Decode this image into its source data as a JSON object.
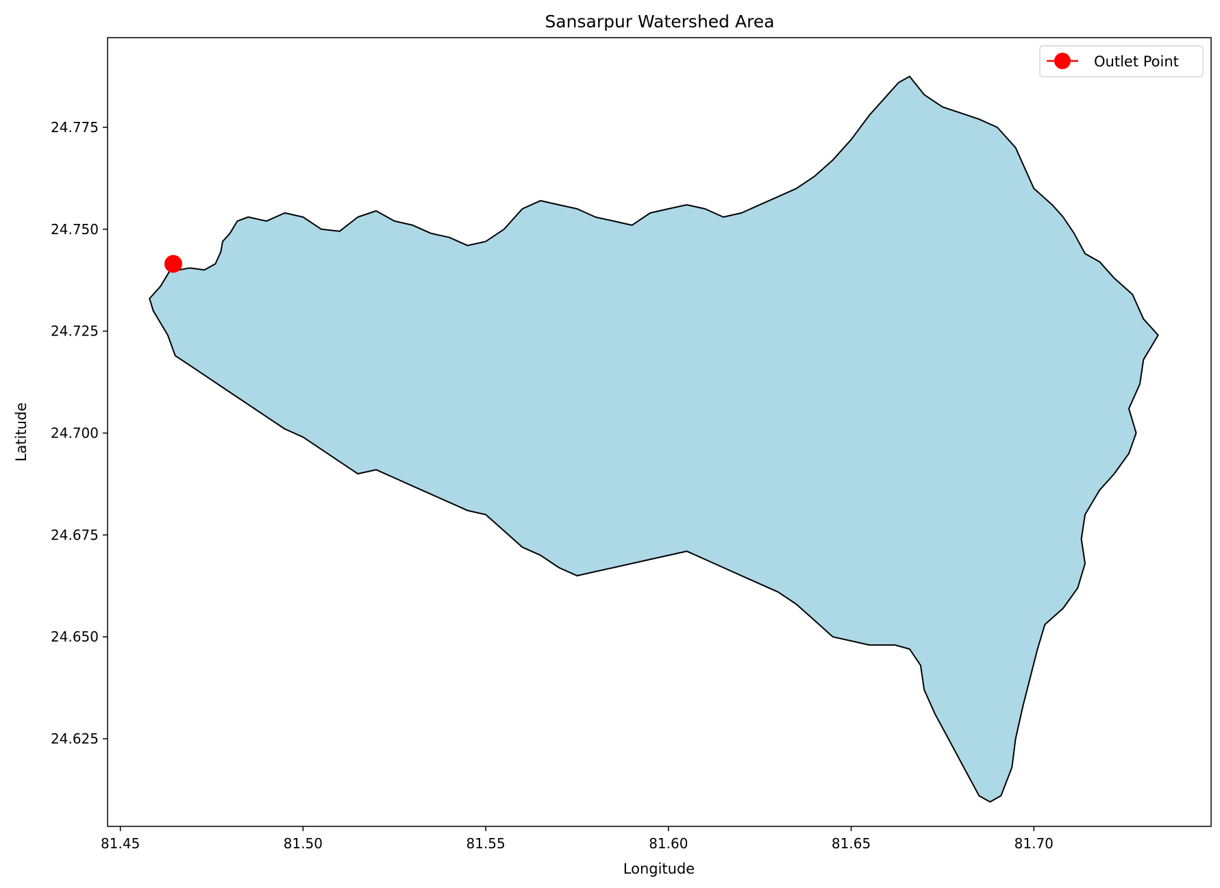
{
  "chart_data": {
    "type": "map",
    "title": "Sansarpur Watershed Area",
    "xlabel": "Longitude",
    "ylabel": "Latitude",
    "xlim": [
      81.4465,
      81.7485
    ],
    "ylim": [
      24.6035,
      24.797
    ],
    "xticks": [
      81.45,
      81.5,
      81.55,
      81.6,
      81.65,
      81.7
    ],
    "xtick_labels": [
      "81.45",
      "81.50",
      "81.55",
      "81.60",
      "81.65",
      "81.70"
    ],
    "yticks": [
      24.625,
      24.65,
      24.675,
      24.7,
      24.725,
      24.75,
      24.775
    ],
    "ytick_labels": [
      "24.625",
      "24.650",
      "24.675",
      "24.700",
      "24.725",
      "24.750",
      "24.775"
    ],
    "grid": false,
    "legend_position": "top-right",
    "legend": [
      {
        "label": "Outlet Point",
        "color": "#ff0000",
        "marker": "circle"
      }
    ],
    "outlet_point": {
      "lon": 81.4645,
      "lat": 24.7415
    },
    "watershed_fill": "#add8e6",
    "watershed_edge": "#000000",
    "boundary": [
      [
        81.4645,
        24.7412
      ],
      [
        81.466,
        24.74
      ],
      [
        81.469,
        24.7405
      ],
      [
        81.473,
        24.74
      ],
      [
        81.476,
        24.7415
      ],
      [
        81.4775,
        24.7445
      ],
      [
        81.478,
        24.747
      ],
      [
        81.48,
        24.749
      ],
      [
        81.482,
        24.752
      ],
      [
        81.485,
        24.753
      ],
      [
        81.49,
        24.752
      ],
      [
        81.495,
        24.754
      ],
      [
        81.5,
        24.753
      ],
      [
        81.505,
        24.75
      ],
      [
        81.51,
        24.7495
      ],
      [
        81.515,
        24.753
      ],
      [
        81.52,
        24.7545
      ],
      [
        81.525,
        24.752
      ],
      [
        81.53,
        24.751
      ],
      [
        81.535,
        24.749
      ],
      [
        81.54,
        24.748
      ],
      [
        81.545,
        24.746
      ],
      [
        81.55,
        24.747
      ],
      [
        81.555,
        24.75
      ],
      [
        81.56,
        24.755
      ],
      [
        81.565,
        24.757
      ],
      [
        81.57,
        24.756
      ],
      [
        81.575,
        24.755
      ],
      [
        81.58,
        24.753
      ],
      [
        81.585,
        24.752
      ],
      [
        81.59,
        24.751
      ],
      [
        81.595,
        24.754
      ],
      [
        81.6,
        24.755
      ],
      [
        81.605,
        24.756
      ],
      [
        81.61,
        24.755
      ],
      [
        81.615,
        24.753
      ],
      [
        81.62,
        24.754
      ],
      [
        81.625,
        24.756
      ],
      [
        81.63,
        24.758
      ],
      [
        81.635,
        24.76
      ],
      [
        81.64,
        24.763
      ],
      [
        81.645,
        24.767
      ],
      [
        81.65,
        24.772
      ],
      [
        81.655,
        24.778
      ],
      [
        81.66,
        24.783
      ],
      [
        81.663,
        24.786
      ],
      [
        81.666,
        24.7875
      ],
      [
        81.67,
        24.783
      ],
      [
        81.675,
        24.78
      ],
      [
        81.68,
        24.7785
      ],
      [
        81.685,
        24.777
      ],
      [
        81.69,
        24.775
      ],
      [
        81.695,
        24.77
      ],
      [
        81.7,
        24.76
      ],
      [
        81.705,
        24.756
      ],
      [
        81.708,
        24.753
      ],
      [
        81.711,
        24.749
      ],
      [
        81.714,
        24.744
      ],
      [
        81.718,
        24.742
      ],
      [
        81.722,
        24.738
      ],
      [
        81.727,
        24.734
      ],
      [
        81.73,
        24.728
      ],
      [
        81.734,
        24.724
      ],
      [
        81.73,
        24.718
      ],
      [
        81.729,
        24.712
      ],
      [
        81.726,
        24.706
      ],
      [
        81.728,
        24.7
      ],
      [
        81.726,
        24.695
      ],
      [
        81.722,
        24.69
      ],
      [
        81.718,
        24.686
      ],
      [
        81.714,
        24.68
      ],
      [
        81.713,
        24.674
      ],
      [
        81.714,
        24.668
      ],
      [
        81.712,
        24.662
      ],
      [
        81.708,
        24.657
      ],
      [
        81.703,
        24.653
      ],
      [
        81.701,
        24.647
      ],
      [
        81.699,
        24.64
      ],
      [
        81.697,
        24.633
      ],
      [
        81.695,
        24.625
      ],
      [
        81.694,
        24.618
      ],
      [
        81.691,
        24.611
      ],
      [
        81.688,
        24.6095
      ],
      [
        81.685,
        24.611
      ],
      [
        81.682,
        24.616
      ],
      [
        81.679,
        24.621
      ],
      [
        81.676,
        24.626
      ],
      [
        81.673,
        24.631
      ],
      [
        81.67,
        24.637
      ],
      [
        81.669,
        24.643
      ],
      [
        81.666,
        24.647
      ],
      [
        81.662,
        24.648
      ],
      [
        81.655,
        24.648
      ],
      [
        81.65,
        24.649
      ],
      [
        81.645,
        24.65
      ],
      [
        81.64,
        24.654
      ],
      [
        81.635,
        24.658
      ],
      [
        81.63,
        24.661
      ],
      [
        81.625,
        24.663
      ],
      [
        81.62,
        24.665
      ],
      [
        81.615,
        24.667
      ],
      [
        81.61,
        24.669
      ],
      [
        81.605,
        24.671
      ],
      [
        81.6,
        24.67
      ],
      [
        81.595,
        24.669
      ],
      [
        81.59,
        24.668
      ],
      [
        81.585,
        24.667
      ],
      [
        81.58,
        24.666
      ],
      [
        81.575,
        24.665
      ],
      [
        81.57,
        24.667
      ],
      [
        81.565,
        24.67
      ],
      [
        81.56,
        24.672
      ],
      [
        81.555,
        24.676
      ],
      [
        81.55,
        24.68
      ],
      [
        81.545,
        24.681
      ],
      [
        81.54,
        24.683
      ],
      [
        81.535,
        24.685
      ],
      [
        81.53,
        24.687
      ],
      [
        81.525,
        24.689
      ],
      [
        81.52,
        24.691
      ],
      [
        81.515,
        24.69
      ],
      [
        81.51,
        24.693
      ],
      [
        81.505,
        24.696
      ],
      [
        81.5,
        24.699
      ],
      [
        81.495,
        24.701
      ],
      [
        81.49,
        24.704
      ],
      [
        81.485,
        24.707
      ],
      [
        81.48,
        24.71
      ],
      [
        81.475,
        24.713
      ],
      [
        81.47,
        24.716
      ],
      [
        81.465,
        24.719
      ],
      [
        81.463,
        24.724
      ],
      [
        81.459,
        24.73
      ],
      [
        81.458,
        24.733
      ],
      [
        81.461,
        24.736
      ],
      [
        81.463,
        24.739
      ]
    ]
  }
}
